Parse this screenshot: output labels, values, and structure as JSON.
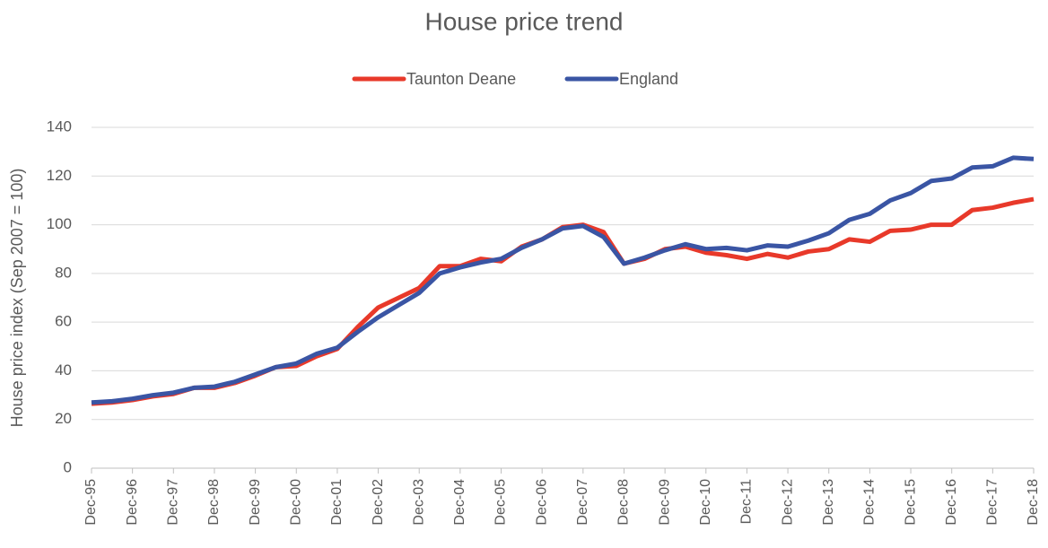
{
  "chart_data": {
    "type": "line",
    "title": "House price trend",
    "y_label": "House price index (Sep 2007 = 100)",
    "categories": [
      "Dec-95",
      null,
      "Dec-96",
      null,
      "Dec-97",
      null,
      "Dec-98",
      null,
      "Dec-99",
      null,
      "Dec-00",
      null,
      "Dec-01",
      null,
      "Dec-02",
      null,
      "Dec-03",
      null,
      "Dec-04",
      null,
      "Dec-05",
      null,
      "Dec-06",
      null,
      "Dec-07",
      null,
      "Dec-08",
      null,
      "Dec-09",
      null,
      "Dec-10",
      null,
      "Dec-11",
      null,
      "Dec-12",
      null,
      "Dec-13",
      null,
      "Dec-14",
      null,
      "Dec-15",
      null,
      "Dec-16",
      null,
      "Dec-17",
      null,
      "Dec-18"
    ],
    "series": [
      {
        "name": "Taunton Deane",
        "color": "#e8392a",
        "values": [
          26.5,
          27,
          28,
          29.5,
          30.5,
          33,
          33,
          35,
          38,
          41.5,
          42,
          46,
          49,
          58,
          66,
          70,
          74,
          83,
          83,
          86,
          85,
          91,
          94,
          99,
          100,
          97,
          84,
          86,
          90,
          91,
          88.5,
          87.5,
          86,
          88,
          86.5,
          89,
          90,
          94,
          93,
          97.5,
          98,
          100,
          100,
          106,
          107,
          109,
          110.5
        ]
      },
      {
        "name": "England",
        "color": "#3a55a4",
        "values": [
          27,
          27.5,
          28.5,
          30,
          31,
          33,
          33.5,
          35.5,
          38.5,
          41.5,
          43,
          47,
          49.5,
          56,
          62,
          67,
          72,
          80,
          82.5,
          84.5,
          86,
          90.5,
          94,
          98.5,
          99.5,
          95,
          84,
          86.5,
          89.5,
          92,
          90,
          90.5,
          89.5,
          91.5,
          91,
          93.5,
          96.5,
          102,
          104.5,
          110,
          113,
          118,
          119,
          123.5,
          124,
          127.5,
          127
        ]
      }
    ],
    "ylim": [
      0,
      140
    ],
    "yticks": [
      0,
      20,
      40,
      60,
      80,
      100,
      120,
      140
    ],
    "grid": true,
    "legend": "top"
  }
}
